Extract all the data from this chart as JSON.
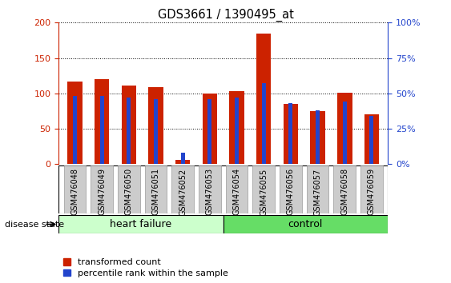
{
  "title": "GDS3661 / 1390495_at",
  "samples": [
    "GSM476048",
    "GSM476049",
    "GSM476050",
    "GSM476051",
    "GSM476052",
    "GSM476053",
    "GSM476054",
    "GSM476055",
    "GSM476056",
    "GSM476057",
    "GSM476058",
    "GSM476059"
  ],
  "transformed_count": [
    117,
    120,
    111,
    109,
    6,
    100,
    103,
    185,
    85,
    75,
    101,
    70
  ],
  "percentile_rank": [
    48,
    48,
    47,
    46,
    8,
    46,
    47,
    57,
    43,
    38,
    44,
    34
  ],
  "heart_failure_count": 6,
  "control_count": 6,
  "heart_failure_label": "heart failure",
  "control_label": "control",
  "disease_state_label": "disease state",
  "legend_red": "transformed count",
  "legend_blue": "percentile rank within the sample",
  "red_color": "#CC2200",
  "blue_color": "#2244CC",
  "ylim_left": [
    0,
    200
  ],
  "ylim_right": [
    0,
    100
  ],
  "yticks_left": [
    0,
    50,
    100,
    150,
    200
  ],
  "yticks_right": [
    0,
    25,
    50,
    75,
    100
  ],
  "ytick_labels_right": [
    "0%",
    "25%",
    "50%",
    "75%",
    "100%"
  ],
  "hf_bg": "#CCFFCC",
  "ctrl_bg": "#66DD66",
  "sample_bg": "#CCCCCC",
  "figsize": [
    5.63,
    3.54
  ],
  "dpi": 100
}
